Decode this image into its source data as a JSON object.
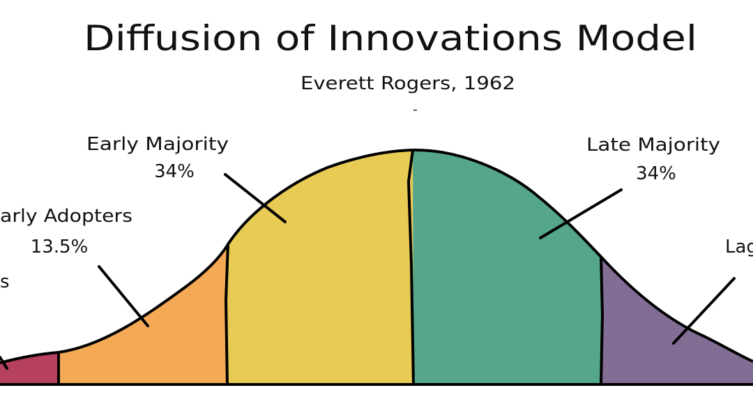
{
  "title": "Diffusion of Innovations Model",
  "subtitle": "Everett Rogers, 1962",
  "segments": [
    {
      "name": "Innovators",
      "percent": "",
      "color": "#b5415f",
      "visible_name": "s"
    },
    {
      "name": "Early Adopters",
      "percent": "13.5%",
      "color": "#f4aa55",
      "visible_name": "arly Adopters"
    },
    {
      "name": "Early Majority",
      "percent": "34%",
      "color": "#e8cb54",
      "visible_name": "Early Majority"
    },
    {
      "name": "Late Majority",
      "percent": "34%",
      "color": "#55a68a",
      "visible_name": "Late Majority"
    },
    {
      "name": "Laggards",
      "percent": "",
      "color": "#826e95",
      "visible_name": "Lag"
    }
  ],
  "outline_color": "#000000"
}
